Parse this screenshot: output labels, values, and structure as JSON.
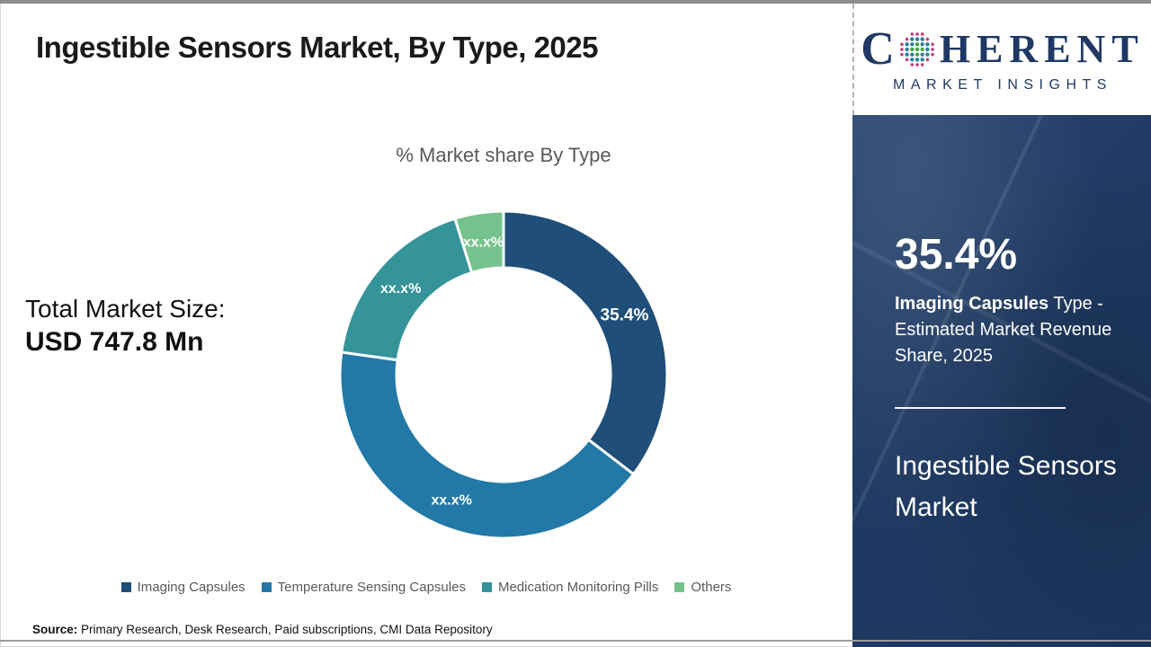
{
  "header": {
    "title": "Ingestible Sensors Market, By Type, 2025"
  },
  "logo": {
    "letter": "C",
    "word_rest": "HERENT",
    "subtitle": "MARKET INSIGHTS",
    "brand_color": "#1f3864",
    "globe_colors": {
      "center": "#47a547",
      "middle": "#2e7f99",
      "outer": "#c2417e"
    }
  },
  "left_panel": {
    "total_label": "Total Market Size:",
    "total_value": "USD 747.8 Mn"
  },
  "chart_data": {
    "type": "pie",
    "donut": true,
    "title": "% Market share By Type",
    "categories": [
      "Imaging Capsules",
      "Temperature Sensing Capsules",
      "Medication Monitoring Pills",
      "Others"
    ],
    "values": [
      35.4,
      41.8,
      18.0,
      4.8
    ],
    "slice_labels": [
      "35.4%",
      "xx.x%",
      "xx.x%",
      "xx.x%"
    ],
    "colors": [
      "#1F4E79",
      "#2279A7",
      "#35949A",
      "#74C38C"
    ],
    "start_angle_deg": 0,
    "direction": "clockwise",
    "outer_radius": 182,
    "inner_radius": 119,
    "label_radius": 150,
    "legend_position": "bottom",
    "legend_text_color": "#595959"
  },
  "sidebar": {
    "background": "#1f3a63",
    "stat_value": "35.4%",
    "stat_bold": "Imaging Capsules",
    "stat_rest": " Type - Estimated Market Revenue Share, 2025",
    "market_name": "Ingestible Sensors Market"
  },
  "footer": {
    "source_label": "Source:",
    "source_text": " Primary Research, Desk Research, Paid subscriptions, CMI Data Repository"
  }
}
